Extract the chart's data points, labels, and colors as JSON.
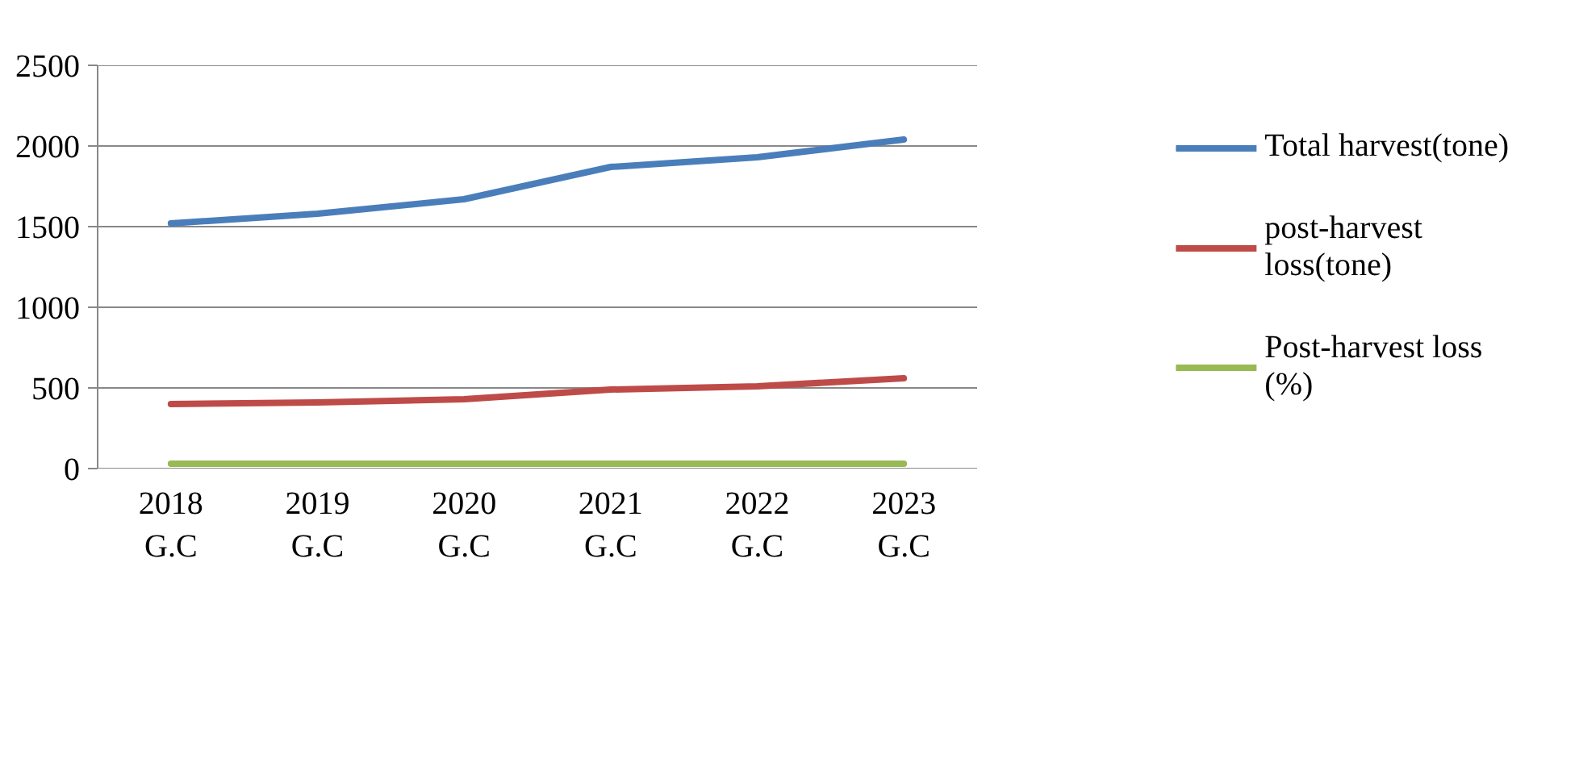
{
  "chart_data": {
    "type": "line",
    "categories": [
      "2018 G.C",
      "2019 G.C",
      "2020 G.C",
      "2021 G.C",
      "2022 G.C",
      "2023 G.C"
    ],
    "series": [
      {
        "name": "Total harvest(tone)",
        "color": "#4a7ebb",
        "values": [
          1520,
          1580,
          1670,
          1870,
          1930,
          2040
        ]
      },
      {
        "name": "post-harvest loss(tone)",
        "color": "#be4b48",
        "values": [
          400,
          410,
          430,
          490,
          510,
          560
        ]
      },
      {
        "name": "Post-harvest loss (%)",
        "color": "#98b954",
        "values": [
          30,
          30,
          30,
          30,
          30,
          30
        ]
      }
    ],
    "ylim": [
      0,
      2500
    ],
    "yticks": [
      0,
      500,
      1000,
      1500,
      2000,
      2500
    ],
    "grid": "y",
    "legend": "right",
    "marker": "none",
    "line_style": "solid"
  }
}
